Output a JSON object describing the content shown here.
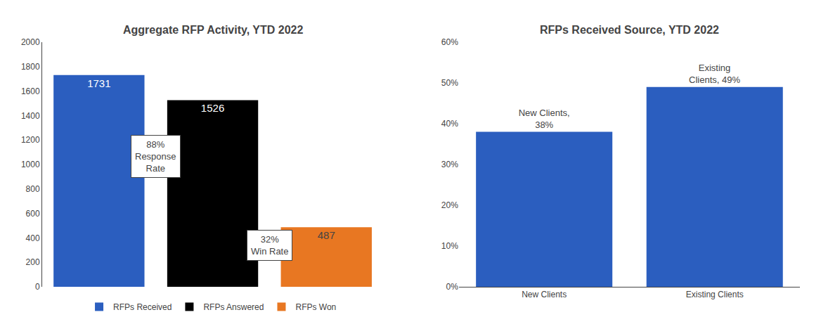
{
  "chart_data": [
    {
      "type": "bar",
      "title": "Aggregate RFP Activity, YTD 2022",
      "categories": [
        null,
        null,
        null
      ],
      "series": [
        {
          "name": "RFPs Received",
          "color": "#2B5EBF",
          "values": [
            1731,
            null,
            null
          ]
        },
        {
          "name": "RFPs Answered",
          "color": "#000000",
          "values": [
            null,
            1526,
            null
          ]
        },
        {
          "name": "RFPs Won",
          "color": "#E87722",
          "values": [
            null,
            null,
            487
          ]
        }
      ],
      "ylim": [
        0,
        2000
      ],
      "yticks": [
        0,
        200,
        400,
        600,
        800,
        1000,
        1200,
        1400,
        1600,
        1800,
        2000
      ],
      "data_labels": true,
      "annotations": [
        "88%\nResponse\nRate",
        "32%\nWin Rate"
      ],
      "legend": "bottom",
      "tick_labels": "y",
      "grid": false
    },
    {
      "type": "bar",
      "title": "RFPs Received Source, YTD 2022",
      "categories": [
        "New Clients",
        "Existing Clients"
      ],
      "values": [
        0.38,
        0.49
      ],
      "value_labels": [
        "New Clients,\n38%",
        "Existing\nClients, 49%"
      ],
      "color": "#2B5EBF",
      "ylim": [
        0,
        0.6
      ],
      "yticks": [
        {
          "value": 0,
          "label": "0%"
        },
        {
          "value": 0.1,
          "label": "10%"
        },
        {
          "value": 0.2,
          "label": "20%"
        },
        {
          "value": 0.3,
          "label": "30%"
        },
        {
          "value": 0.4,
          "label": "40%"
        },
        {
          "value": 0.5,
          "label": "50%"
        },
        {
          "value": 0.6,
          "label": "60%"
        }
      ],
      "data_labels": true,
      "grid": false
    }
  ]
}
